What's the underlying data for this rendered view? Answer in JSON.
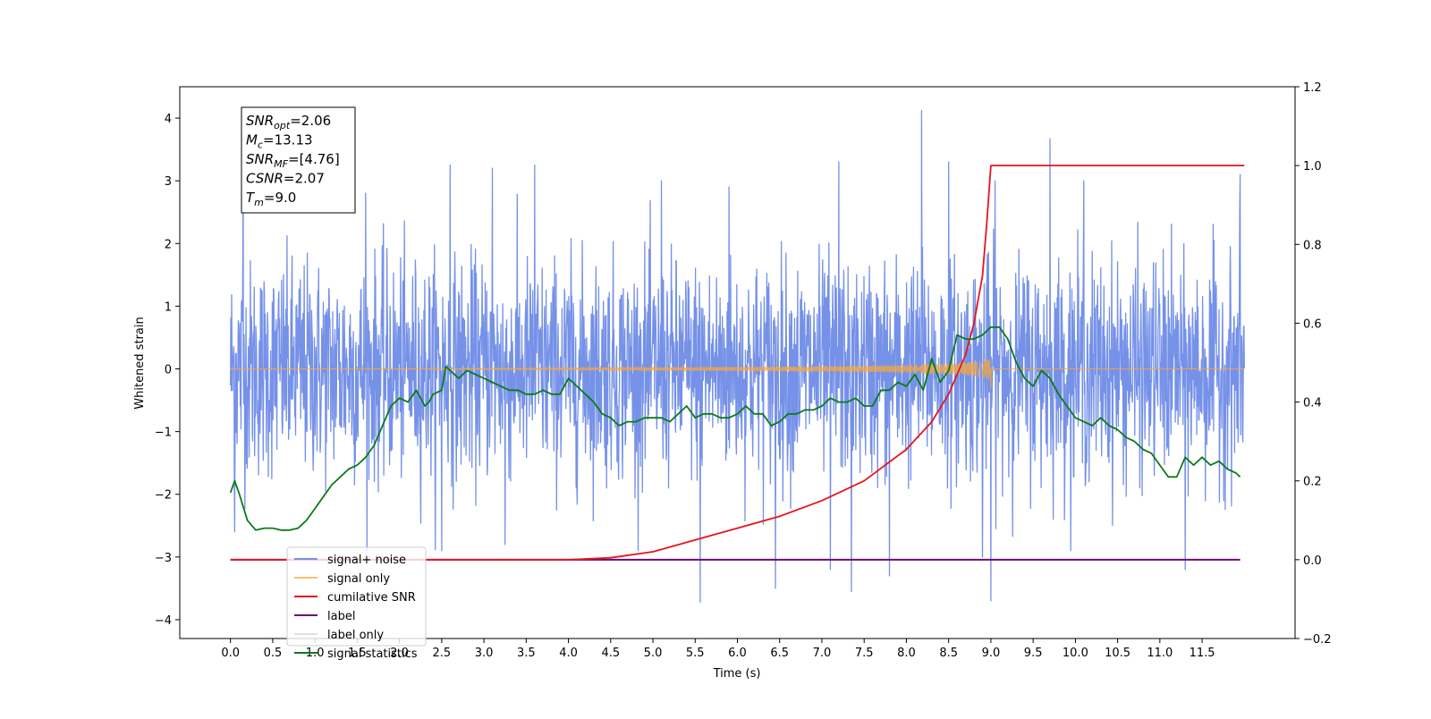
{
  "chart_data": {
    "type": "line",
    "xlabel": "Time (s)",
    "ylabel": "Whitened strain",
    "xlim": [
      -0.6,
      12.6
    ],
    "ylim_left": [
      -4.3,
      4.5
    ],
    "ylim_right": [
      -0.2,
      1.2
    ],
    "x_ticks": [
      "0.0",
      "0.5",
      "1.0",
      "1.5",
      "2.0",
      "2.5",
      "3.0",
      "3.5",
      "4.0",
      "4.5",
      "5.0",
      "5.5",
      "6.0",
      "6.5",
      "7.0",
      "7.5",
      "8.0",
      "8.5",
      "9.0",
      "9.5",
      "10.0",
      "10.5",
      "11.0",
      "11.5"
    ],
    "y_ticks_left": [
      "4",
      "3",
      "2",
      "1",
      "0",
      "−1",
      "−2",
      "−3",
      "−4"
    ],
    "y_ticks_right": [
      "1.2",
      "1.0",
      "0.8",
      "0.6",
      "0.4",
      "0.2",
      "0.0",
      "−0.2"
    ],
    "grid": false,
    "legend_position": "lower-left",
    "annotation": [
      {
        "base": "SNR",
        "sub": "opt",
        "value": "=2.06"
      },
      {
        "base": "M",
        "sub": "c",
        "value": "=13.13"
      },
      {
        "base": "SNR",
        "sub": "MF",
        "value": "=[4.76]"
      },
      {
        "base": "CSNR",
        "sub": "",
        "value": "=2.07"
      },
      {
        "base": "T",
        "sub": "m",
        "value": "=9.0"
      }
    ],
    "series": [
      {
        "name": "signal+ noise",
        "color": "#7591e8",
        "axis": "left",
        "description_stats": {
          "x_range": [
            0.0,
            12.0
          ],
          "typical_band": [
            -1.5,
            1.6
          ],
          "max": 4.12,
          "min": -3.72
        },
        "spikes": [
          {
            "x": 0.05,
            "y": 2.55
          },
          {
            "x": 0.15,
            "y": 3.3
          },
          {
            "x": 0.05,
            "y": -2.6
          },
          {
            "x": 1.6,
            "y": 2.8
          },
          {
            "x": 2.6,
            "y": 3.25
          },
          {
            "x": 3.1,
            "y": 3.2
          },
          {
            "x": 3.25,
            "y": -2.8
          },
          {
            "x": 3.6,
            "y": 3.25
          },
          {
            "x": 2.5,
            "y": -2.9
          },
          {
            "x": 5.1,
            "y": 3.0
          },
          {
            "x": 5.56,
            "y": -3.72
          },
          {
            "x": 5.9,
            "y": 2.9
          },
          {
            "x": 6.45,
            "y": -3.5
          },
          {
            "x": 7.2,
            "y": 3.3
          },
          {
            "x": 7.1,
            "y": -3.2
          },
          {
            "x": 7.35,
            "y": -3.55
          },
          {
            "x": 7.8,
            "y": -3.3
          },
          {
            "x": 8.18,
            "y": 4.12
          },
          {
            "x": 8.5,
            "y": 3.3
          },
          {
            "x": 8.9,
            "y": -3.0
          },
          {
            "x": 9.0,
            "y": -3.7
          },
          {
            "x": 9.05,
            "y": 3.0
          },
          {
            "x": 9.7,
            "y": 3.67
          },
          {
            "x": 10.1,
            "y": 3.0
          },
          {
            "x": 11.3,
            "y": -3.2
          },
          {
            "x": 11.95,
            "y": 3.1
          }
        ]
      },
      {
        "name": "signal only",
        "color": "#f7a83e",
        "axis": "left",
        "chirp": {
          "x_start": 0.0,
          "x_end": 12.0,
          "t_merge": 9.0,
          "peak_amplitude": 0.32
        }
      },
      {
        "name": "cumilative SNR",
        "color": "#e8141a",
        "axis": "right",
        "x": [
          0.0,
          4.0,
          4.5,
          5.0,
          5.5,
          6.0,
          6.5,
          7.0,
          7.5,
          8.0,
          8.3,
          8.5,
          8.7,
          8.8,
          8.9,
          8.95,
          9.0,
          9.5,
          10.0,
          11.0,
          12.0
        ],
        "values": [
          0.0,
          0.0,
          0.005,
          0.02,
          0.05,
          0.08,
          0.11,
          0.15,
          0.2,
          0.28,
          0.35,
          0.42,
          0.52,
          0.6,
          0.72,
          0.85,
          1.0,
          1.0,
          1.0,
          1.0,
          1.0
        ]
      },
      {
        "name": "label",
        "color": "#6e0a75",
        "axis": "right",
        "x": [
          0.0,
          11.95
        ],
        "values": [
          0.0,
          0.0
        ]
      },
      {
        "name": "label only",
        "color": "#e0e0e0",
        "axis": "right",
        "legend_only": true
      },
      {
        "name": "signal statistics",
        "color": "#0d7a16",
        "axis": "right",
        "x": [
          0.0,
          0.05,
          0.1,
          0.2,
          0.3,
          0.4,
          0.5,
          0.6,
          0.7,
          0.8,
          0.9,
          1.0,
          1.1,
          1.2,
          1.3,
          1.4,
          1.5,
          1.6,
          1.7,
          1.8,
          1.9,
          2.0,
          2.1,
          2.2,
          2.3,
          2.35,
          2.4,
          2.5,
          2.55,
          2.6,
          2.7,
          2.8,
          2.9,
          3.0,
          3.1,
          3.2,
          3.3,
          3.4,
          3.5,
          3.6,
          3.7,
          3.8,
          3.9,
          4.0,
          4.1,
          4.2,
          4.3,
          4.4,
          4.5,
          4.6,
          4.7,
          4.8,
          4.9,
          5.0,
          5.1,
          5.2,
          5.3,
          5.4,
          5.5,
          5.6,
          5.7,
          5.8,
          5.9,
          6.0,
          6.1,
          6.2,
          6.3,
          6.4,
          6.5,
          6.6,
          6.7,
          6.8,
          6.9,
          7.0,
          7.1,
          7.2,
          7.3,
          7.4,
          7.5,
          7.6,
          7.7,
          7.8,
          7.9,
          8.0,
          8.1,
          8.2,
          8.3,
          8.4,
          8.5,
          8.6,
          8.7,
          8.8,
          8.9,
          9.0,
          9.1,
          9.2,
          9.3,
          9.4,
          9.5,
          9.6,
          9.7,
          9.8,
          9.9,
          10.0,
          10.1,
          10.2,
          10.3,
          10.4,
          10.5,
          10.6,
          10.7,
          10.8,
          10.9,
          11.0,
          11.1,
          11.2,
          11.3,
          11.4,
          11.5,
          11.6,
          11.7,
          11.8,
          11.9,
          11.95
        ],
        "values": [
          0.17,
          0.2,
          0.17,
          0.1,
          0.075,
          0.08,
          0.08,
          0.075,
          0.075,
          0.08,
          0.1,
          0.13,
          0.16,
          0.19,
          0.21,
          0.23,
          0.24,
          0.26,
          0.29,
          0.34,
          0.39,
          0.41,
          0.4,
          0.43,
          0.39,
          0.4,
          0.42,
          0.43,
          0.49,
          0.48,
          0.46,
          0.48,
          0.47,
          0.46,
          0.45,
          0.44,
          0.43,
          0.43,
          0.42,
          0.42,
          0.43,
          0.42,
          0.42,
          0.46,
          0.44,
          0.42,
          0.4,
          0.37,
          0.36,
          0.34,
          0.35,
          0.35,
          0.36,
          0.36,
          0.36,
          0.35,
          0.37,
          0.39,
          0.36,
          0.37,
          0.37,
          0.36,
          0.36,
          0.37,
          0.39,
          0.37,
          0.37,
          0.34,
          0.35,
          0.37,
          0.37,
          0.38,
          0.38,
          0.39,
          0.41,
          0.4,
          0.4,
          0.41,
          0.39,
          0.39,
          0.43,
          0.43,
          0.45,
          0.44,
          0.47,
          0.43,
          0.51,
          0.45,
          0.48,
          0.57,
          0.56,
          0.56,
          0.57,
          0.59,
          0.59,
          0.56,
          0.5,
          0.46,
          0.44,
          0.48,
          0.46,
          0.42,
          0.39,
          0.36,
          0.35,
          0.34,
          0.36,
          0.34,
          0.33,
          0.31,
          0.3,
          0.28,
          0.27,
          0.24,
          0.21,
          0.21,
          0.26,
          0.24,
          0.26,
          0.24,
          0.25,
          0.23,
          0.22,
          0.21
        ]
      }
    ]
  }
}
